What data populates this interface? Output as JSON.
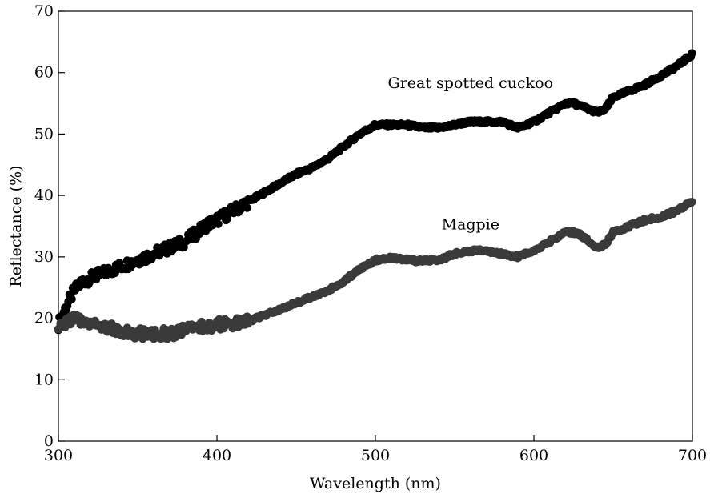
{
  "chart_data": {
    "type": "scatter",
    "title": "",
    "xlabel": "Wavelength (nm)",
    "ylabel": "Reflectance (%)",
    "xlim": [
      300,
      700
    ],
    "ylim": [
      0,
      70
    ],
    "xticks": [
      300,
      400,
      500,
      600,
      700
    ],
    "yticks": [
      0,
      10,
      20,
      30,
      40,
      50,
      60,
      70
    ],
    "grid": false,
    "legend": "none",
    "series": [
      {
        "name": "Great spotted cuckoo",
        "color": "#000000",
        "x": [
          300,
          305,
          310,
          315,
          320,
          325,
          330,
          335,
          340,
          345,
          350,
          355,
          360,
          365,
          370,
          375,
          380,
          385,
          390,
          395,
          400,
          410,
          420,
          430,
          440,
          450,
          460,
          470,
          480,
          490,
          500,
          510,
          520,
          530,
          540,
          550,
          560,
          570,
          580,
          590,
          600,
          610,
          620,
          625,
          630,
          640,
          645,
          650,
          660,
          670,
          680,
          690,
          700
        ],
        "y": [
          19,
          22,
          24.5,
          26,
          26.5,
          27,
          27.5,
          28,
          28.5,
          29,
          29.5,
          30,
          30.5,
          31,
          31.5,
          32,
          32.5,
          33.5,
          34.5,
          35.5,
          36,
          37.5,
          39,
          40.5,
          42,
          43.5,
          44.5,
          46,
          48,
          50,
          51.5,
          51.5,
          51.5,
          51,
          51,
          51.5,
          52,
          52,
          52,
          51,
          52,
          53.5,
          55,
          55,
          54.5,
          53.5,
          54,
          56,
          57,
          58,
          59.5,
          61,
          63
        ]
      },
      {
        "name": "Magpie",
        "color": "#3a3a3a",
        "x": [
          300,
          305,
          310,
          315,
          320,
          325,
          330,
          340,
          350,
          360,
          370,
          380,
          390,
          400,
          410,
          420,
          430,
          440,
          450,
          460,
          470,
          480,
          490,
          500,
          510,
          520,
          530,
          540,
          550,
          560,
          570,
          580,
          590,
          600,
          610,
          620,
          625,
          630,
          640,
          645,
          650,
          660,
          670,
          680,
          690,
          700
        ],
        "y": [
          18,
          19.5,
          20,
          19.5,
          19.5,
          19,
          18.5,
          18,
          17.5,
          17.5,
          17.5,
          18,
          18.5,
          19,
          19,
          19.5,
          20.5,
          21.5,
          22.5,
          23.5,
          24.5,
          26,
          28,
          29.5,
          29.8,
          29.5,
          29.3,
          29.5,
          30.5,
          31,
          31,
          30.5,
          30,
          31,
          32.5,
          34,
          34,
          33.5,
          31.5,
          32,
          34,
          35,
          36,
          36.5,
          37.5,
          39
        ]
      }
    ],
    "annotations": [
      {
        "text": "Great spotted cuckoo",
        "x": 560,
        "y": 57.5
      },
      {
        "text": "Magpie",
        "x": 560,
        "y": 34.5
      }
    ]
  }
}
